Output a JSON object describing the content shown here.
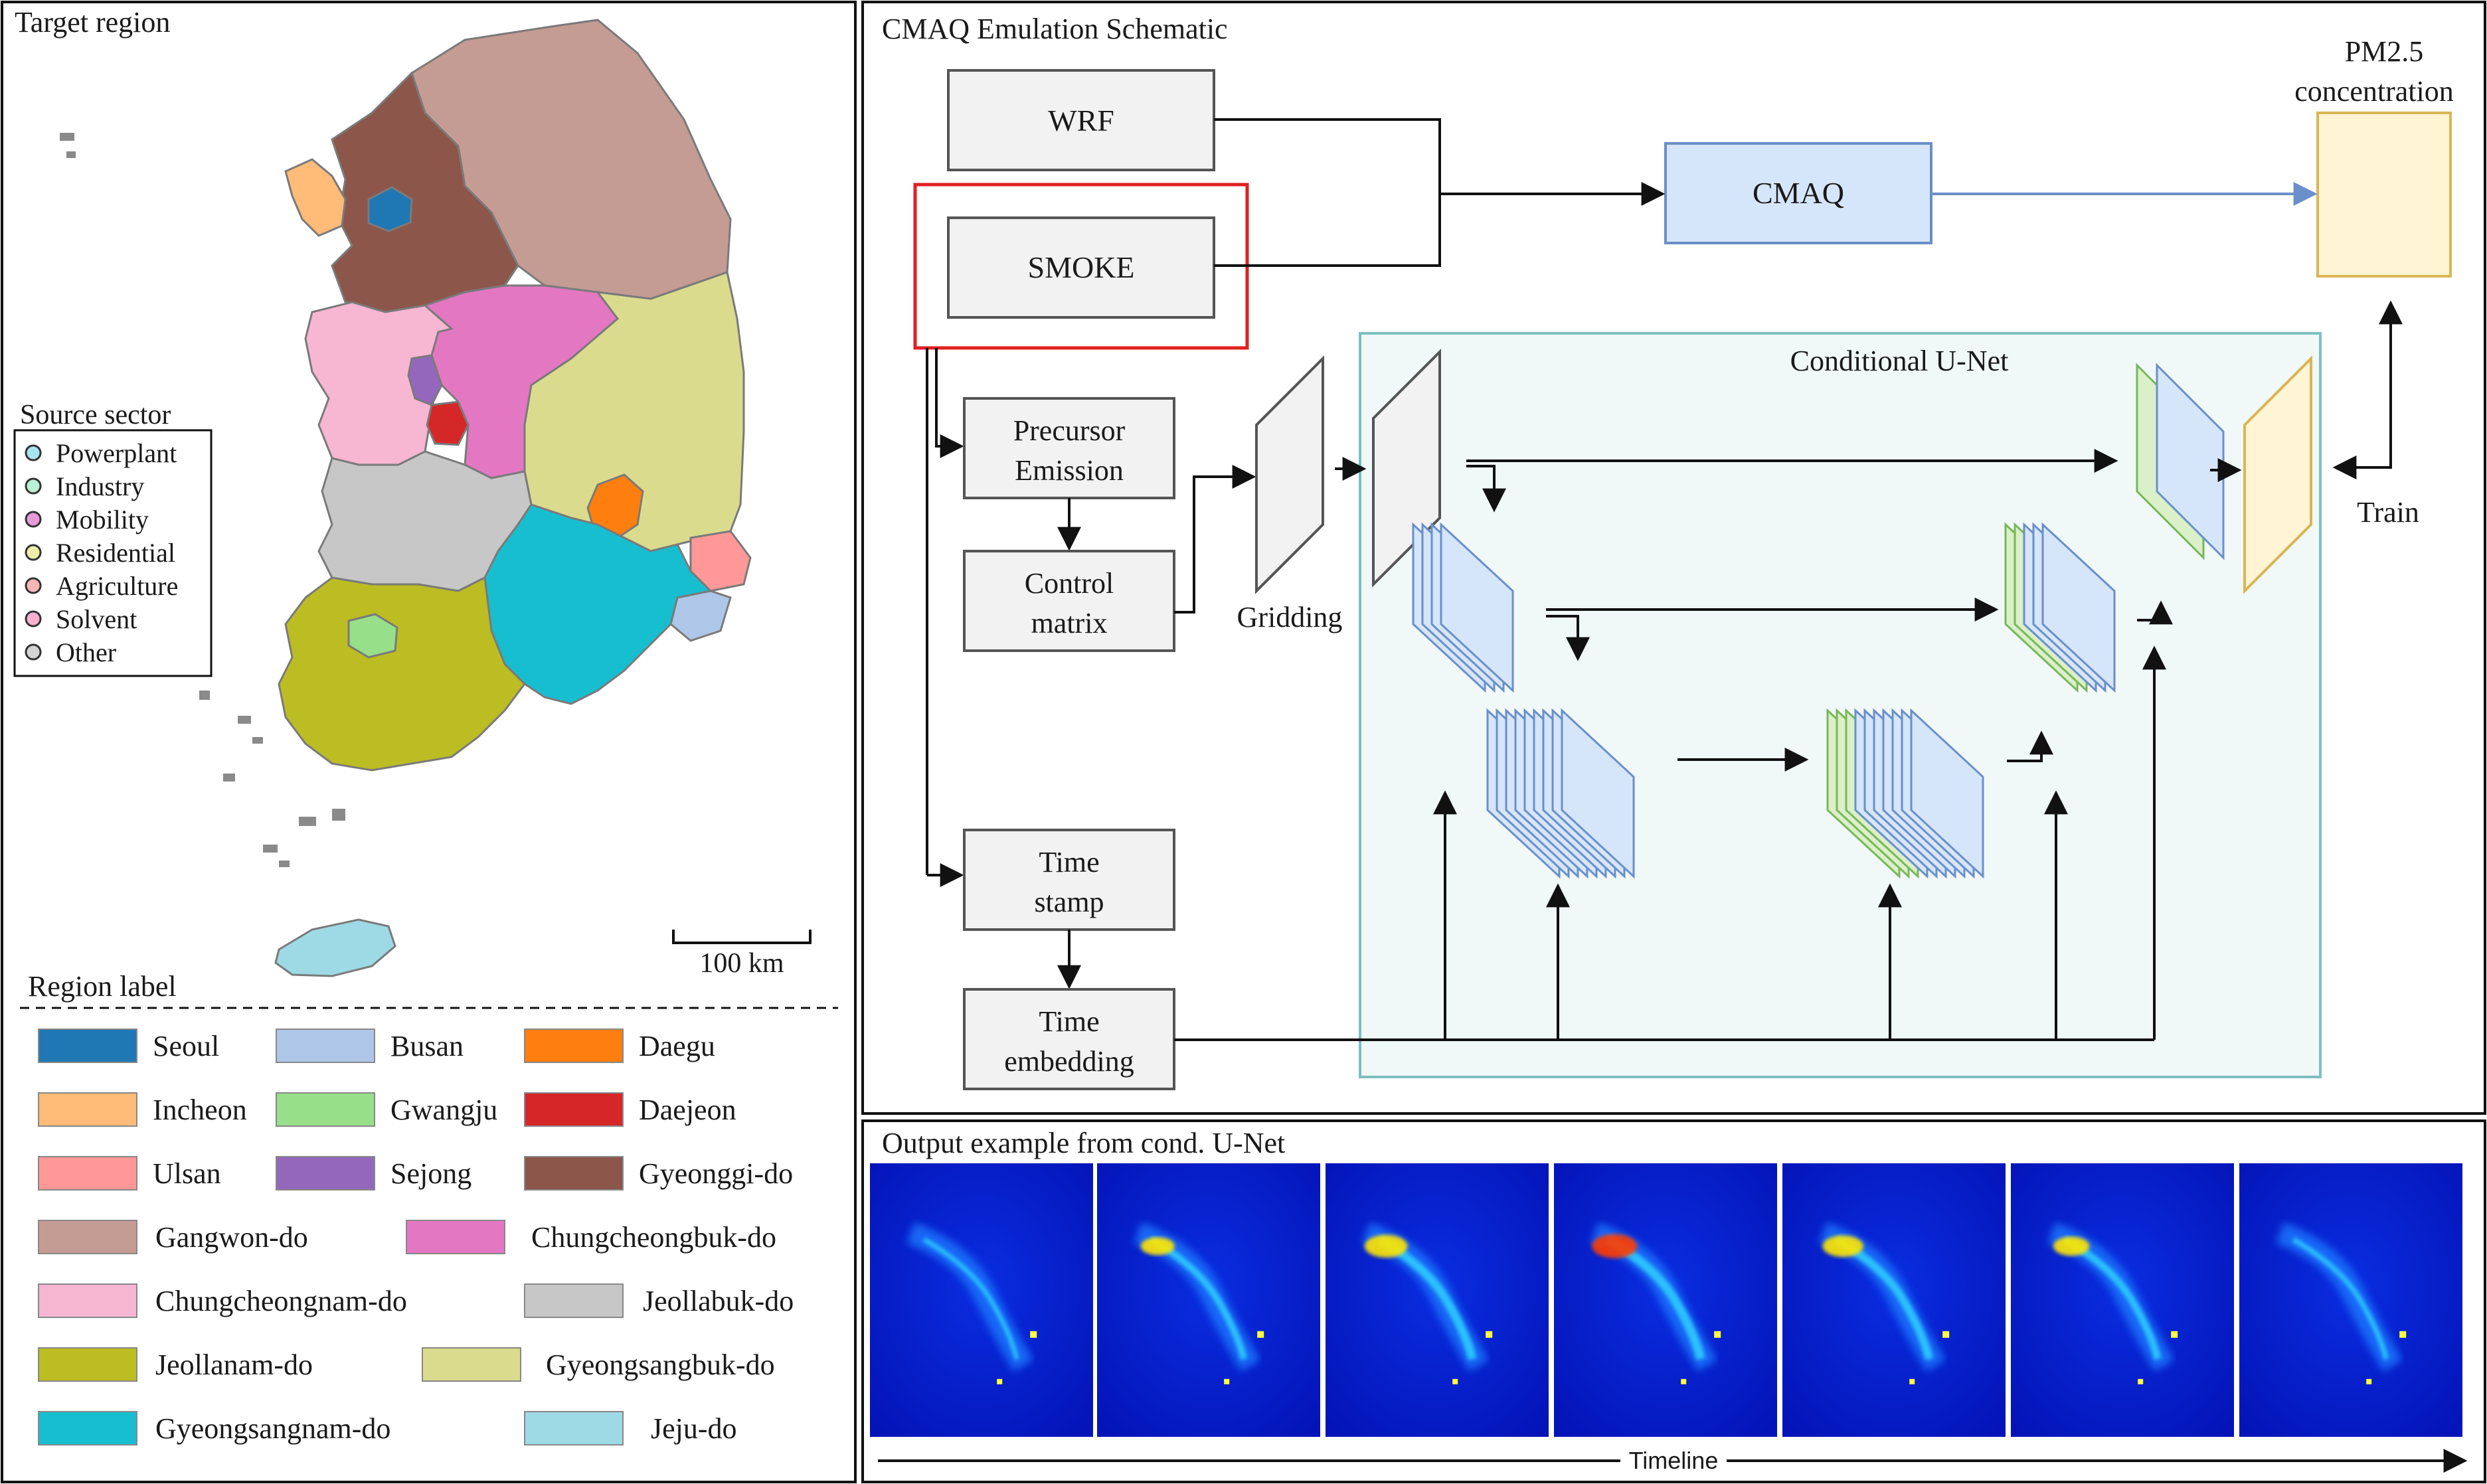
{
  "map_panel": {
    "title": "Target region",
    "scale_label": "100 km",
    "source_sector": {
      "title": "Source sector",
      "items": [
        {
          "label": "Powerplant",
          "color": "#a6e4ee"
        },
        {
          "label": "Industry",
          "color": "#b9f0d6"
        },
        {
          "label": "Mobility",
          "color": "#e79ad8"
        },
        {
          "label": "Residential",
          "color": "#ecefa8"
        },
        {
          "label": "Agriculture",
          "color": "#f8b7b4"
        },
        {
          "label": "Solvent",
          "color": "#f7b0d0"
        },
        {
          "label": "Other",
          "color": "#d4d4d4"
        }
      ]
    },
    "region_legend": {
      "title": "Region label",
      "items": [
        {
          "label": "Seoul",
          "color": "#1f77b4"
        },
        {
          "label": "Busan",
          "color": "#aec7e8"
        },
        {
          "label": "Daegu",
          "color": "#ff7f0e"
        },
        {
          "label": "Incheon",
          "color": "#ffbb78"
        },
        {
          "label": "Gwangju",
          "color": "#98df8a"
        },
        {
          "label": "Daejeon",
          "color": "#d62728"
        },
        {
          "label": "Ulsan",
          "color": "#ff9896"
        },
        {
          "label": "Sejong",
          "color": "#9467bd"
        },
        {
          "label": "Gyeonggi-do",
          "color": "#8c564b"
        },
        {
          "label": "Gangwon-do",
          "color": "#c49c94"
        },
        {
          "label": "Chungcheongbuk-do",
          "color": "#e377c2"
        },
        {
          "label": "Chungcheongnam-do",
          "color": "#f7b6d2"
        },
        {
          "label": "Jeollabuk-do",
          "color": "#c7c7c7"
        },
        {
          "label": "Jeollanam-do",
          "color": "#bcbd22"
        },
        {
          "label": "Gyeongsangbuk-do",
          "color": "#dbdb8d"
        },
        {
          "label": "Gyeongsangnam-do",
          "color": "#17becf"
        },
        {
          "label": "Jeju-do",
          "color": "#9edae5"
        }
      ]
    }
  },
  "schematic": {
    "title": "CMAQ Emulation Schematic",
    "wrf": "WRF",
    "smoke": "SMOKE",
    "cmaq": "CMAQ",
    "pm_line1": "PM2.5",
    "pm_line2": "concentration",
    "precursor_line1": "Precursor",
    "precursor_line2": "Emission",
    "control_line1": "Control",
    "control_line2": "matrix",
    "gridding": "Gridding",
    "unet_title": "Conditional U-Net",
    "train": "Train",
    "timestamp_line1": "Time",
    "timestamp_line2": "stamp",
    "timeemb_line1": "Time",
    "timeemb_line2": "embedding"
  },
  "output_panel": {
    "title": "Output example from cond. U-Net",
    "timeline": "Timeline"
  }
}
